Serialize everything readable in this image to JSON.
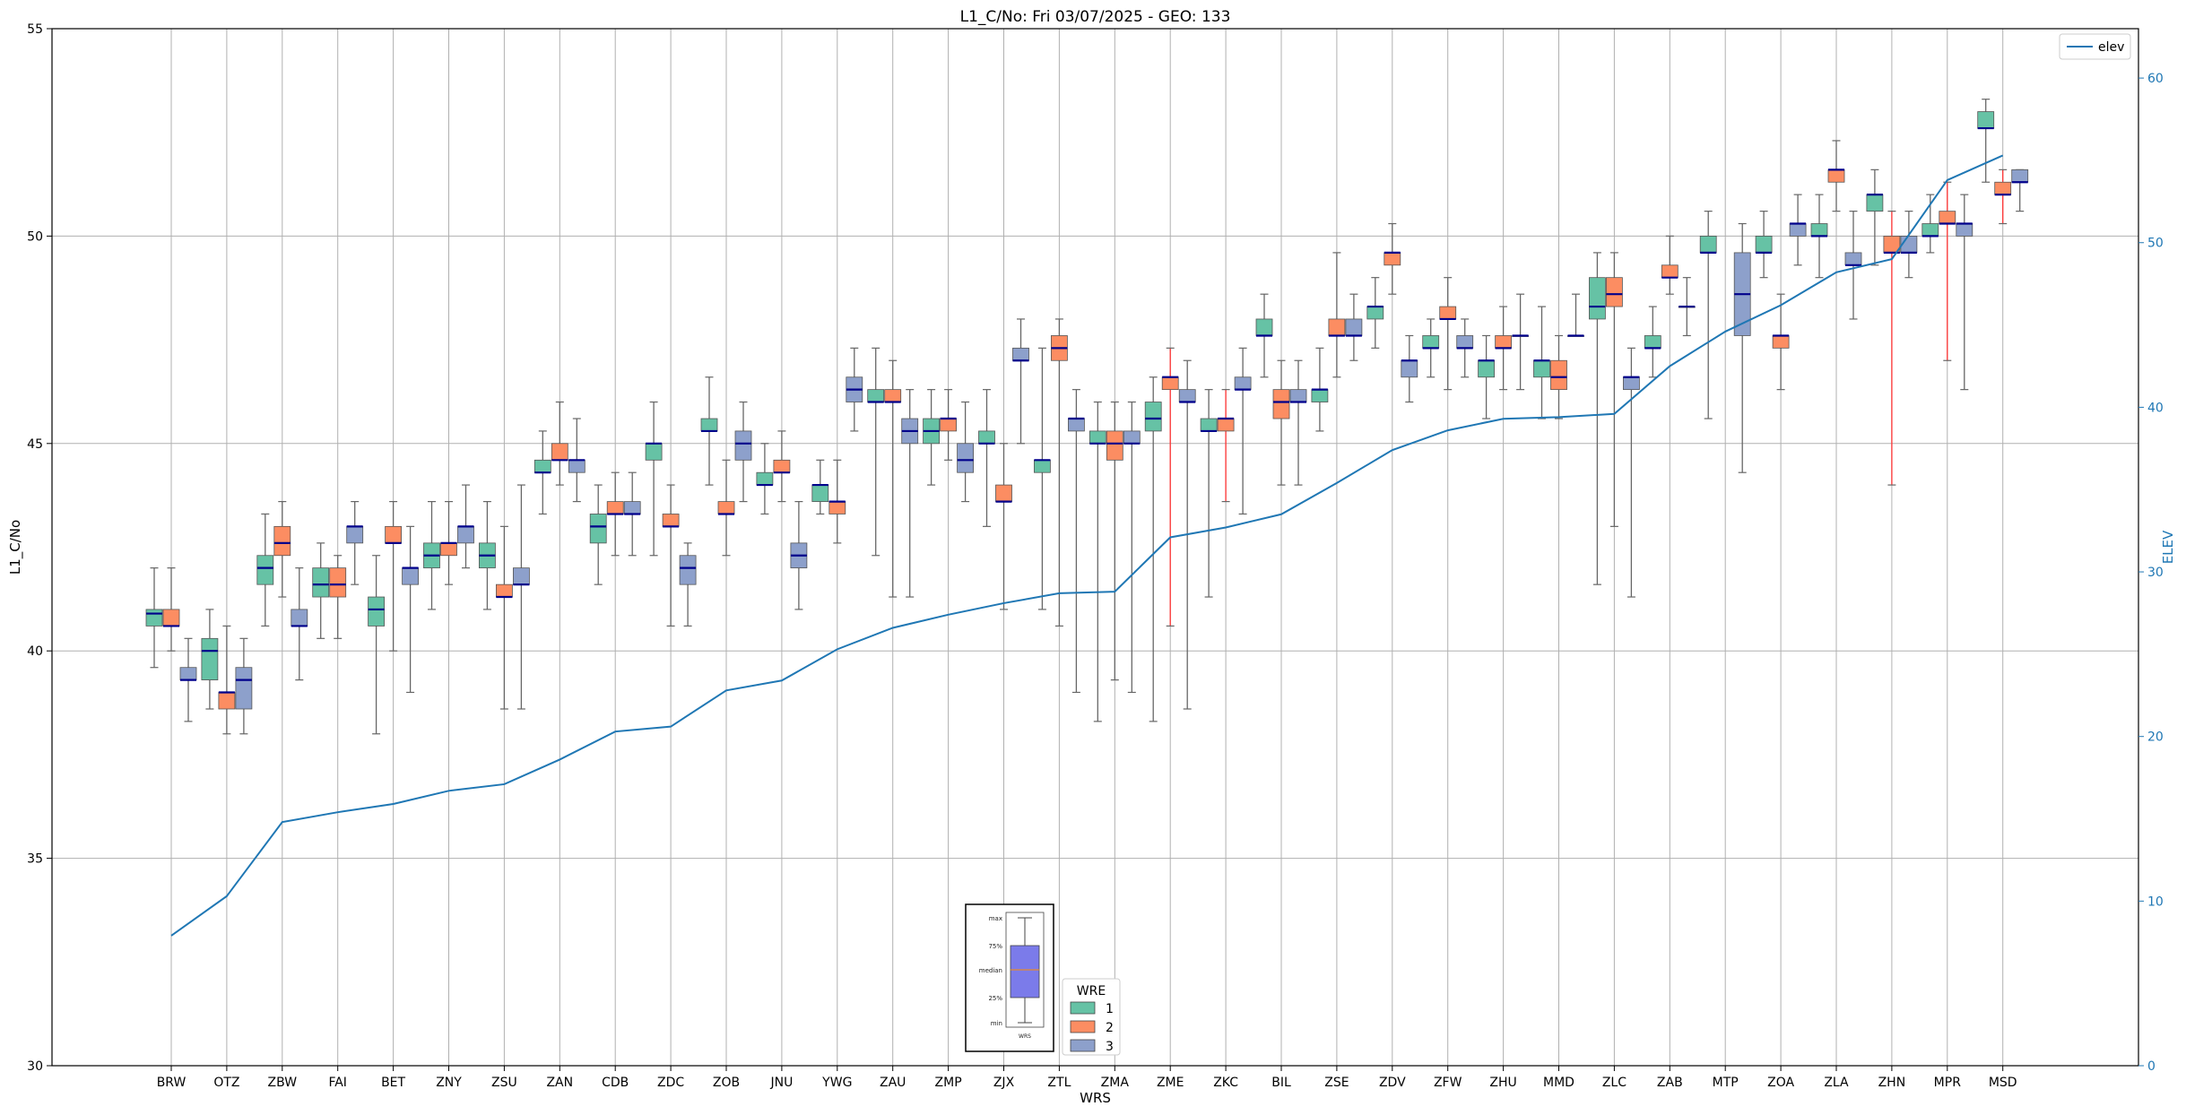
{
  "chart_data": {
    "type": "box",
    "title": "L1_C/No: Fri 03/07/2025 - GEO: 133",
    "xlabel": "WRS",
    "ylabel": "L1_C/No",
    "y2label": "ELEV",
    "ylim": [
      30,
      55
    ],
    "y2lim": [
      0,
      63
    ],
    "yticks": [
      30,
      35,
      40,
      45,
      50,
      55
    ],
    "y2ticks": [
      0,
      10,
      20,
      30,
      40,
      50,
      60
    ],
    "grid": true,
    "categories": [
      "BRW",
      "OTZ",
      "ZBW",
      "FAI",
      "BET",
      "ZNY",
      "ZSU",
      "ZAN",
      "CDB",
      "ZDC",
      "ZOB",
      "JNU",
      "YWG",
      "ZAU",
      "ZMP",
      "ZJX",
      "ZTL",
      "ZMA",
      "ZME",
      "ZKC",
      "BIL",
      "ZSE",
      "ZDV",
      "ZFW",
      "ZHU",
      "MMD",
      "ZLC",
      "ZAB",
      "MTP",
      "ZOA",
      "ZLA",
      "ZHN",
      "MPR",
      "MSD"
    ],
    "elev_legend": "elev",
    "elev": [
      7.9,
      10.3,
      14.8,
      15.4,
      15.9,
      16.7,
      17.1,
      18.6,
      20.3,
      20.6,
      22.8,
      23.4,
      25.3,
      26.6,
      27.4,
      28.1,
      28.7,
      28.8,
      32.1,
      32.7,
      33.5,
      35.4,
      37.4,
      38.6,
      39.3,
      39.4,
      39.6,
      42.5,
      44.6,
      46.2,
      48.2,
      49.0,
      53.8,
      55.3
    ],
    "wre_legend_title": "WRE",
    "box_colors": {
      "1": "#66c2a5",
      "2": "#fc8d62",
      "3": "#8da0cb"
    },
    "median_color": "#00008b",
    "whisker_color": "#666666",
    "highlight_whisker_color": "#ff3333",
    "series": [
      {
        "name": "1",
        "boxes": [
          {
            "cat": "BRW",
            "min": 39.6,
            "q1": 40.6,
            "med": 40.9,
            "q3": 41.0,
            "max": 42.0
          },
          {
            "cat": "OTZ",
            "min": 38.6,
            "q1": 39.3,
            "med": 40.0,
            "q3": 40.3,
            "max": 41.0
          },
          {
            "cat": "ZBW",
            "min": 40.6,
            "q1": 41.6,
            "med": 42.0,
            "q3": 42.3,
            "max": 43.3
          },
          {
            "cat": "FAI",
            "min": 40.3,
            "q1": 41.3,
            "med": 41.6,
            "q3": 42.0,
            "max": 42.6
          },
          {
            "cat": "BET",
            "min": 38.0,
            "q1": 40.6,
            "med": 41.0,
            "q3": 41.3,
            "max": 42.3
          },
          {
            "cat": "ZNY",
            "min": 41.0,
            "q1": 42.0,
            "med": 42.3,
            "q3": 42.6,
            "max": 43.6
          },
          {
            "cat": "ZSU",
            "min": 41.0,
            "q1": 42.0,
            "med": 42.3,
            "q3": 42.6,
            "max": 43.6
          },
          {
            "cat": "ZAN",
            "min": 43.3,
            "q1": 44.3,
            "med": 44.3,
            "q3": 44.6,
            "max": 45.3
          },
          {
            "cat": "CDB",
            "min": 41.6,
            "q1": 42.6,
            "med": 43.0,
            "q3": 43.3,
            "max": 44.0
          },
          {
            "cat": "ZDC",
            "min": 42.3,
            "q1": 44.6,
            "med": 45.0,
            "q3": 45.0,
            "max": 46.0
          },
          {
            "cat": "ZOB",
            "min": 44.0,
            "q1": 45.3,
            "med": 45.3,
            "q3": 45.6,
            "max": 46.6
          },
          {
            "cat": "JNU",
            "min": 43.3,
            "q1": 44.0,
            "med": 44.0,
            "q3": 44.3,
            "max": 45.0
          },
          {
            "cat": "YWG",
            "min": 43.3,
            "q1": 43.6,
            "med": 44.0,
            "q3": 44.0,
            "max": 44.6
          },
          {
            "cat": "ZAU",
            "min": 42.3,
            "q1": 46.0,
            "med": 46.0,
            "q3": 46.3,
            "max": 47.3
          },
          {
            "cat": "ZMP",
            "min": 44.0,
            "q1": 45.0,
            "med": 45.3,
            "q3": 45.6,
            "max": 46.3
          },
          {
            "cat": "ZJX",
            "min": 43.0,
            "q1": 45.0,
            "med": 45.0,
            "q3": 45.3,
            "max": 46.3
          },
          {
            "cat": "ZTL",
            "min": 41.0,
            "q1": 44.3,
            "med": 44.6,
            "q3": 44.6,
            "max": 47.3
          },
          {
            "cat": "ZMA",
            "min": 38.3,
            "q1": 45.0,
            "med": 45.0,
            "q3": 45.3,
            "max": 46.0
          },
          {
            "cat": "ZME",
            "min": 38.3,
            "q1": 45.3,
            "med": 45.6,
            "q3": 46.0,
            "max": 46.6
          },
          {
            "cat": "ZKC",
            "min": 41.3,
            "q1": 45.3,
            "med": 45.3,
            "q3": 45.6,
            "max": 46.3
          },
          {
            "cat": "BIL",
            "min": 46.6,
            "q1": 47.6,
            "med": 47.6,
            "q3": 48.0,
            "max": 48.6
          },
          {
            "cat": "ZSE",
            "min": 45.3,
            "q1": 46.0,
            "med": 46.3,
            "q3": 46.3,
            "max": 47.3
          },
          {
            "cat": "ZDV",
            "min": 47.3,
            "q1": 48.0,
            "med": 48.3,
            "q3": 48.3,
            "max": 49.0
          },
          {
            "cat": "ZFW",
            "min": 46.6,
            "q1": 47.3,
            "med": 47.3,
            "q3": 47.6,
            "max": 48.0
          },
          {
            "cat": "ZHU",
            "min": 45.6,
            "q1": 46.6,
            "med": 47.0,
            "q3": 47.0,
            "max": 47.6
          },
          {
            "cat": "MMD",
            "min": 45.6,
            "q1": 46.6,
            "med": 47.0,
            "q3": 47.0,
            "max": 48.3
          },
          {
            "cat": "ZLC",
            "min": 41.6,
            "q1": 48.0,
            "med": 48.3,
            "q3": 49.0,
            "max": 49.6
          },
          {
            "cat": "ZAB",
            "min": 46.6,
            "q1": 47.3,
            "med": 47.3,
            "q3": 47.6,
            "max": 48.3
          },
          {
            "cat": "MTP",
            "min": 45.6,
            "q1": 49.6,
            "med": 49.6,
            "q3": 50.0,
            "max": 50.6
          },
          {
            "cat": "ZOA",
            "min": 49.0,
            "q1": 49.6,
            "med": 49.6,
            "q3": 50.0,
            "max": 50.6
          },
          {
            "cat": "ZLA",
            "min": 49.0,
            "q1": 50.0,
            "med": 50.0,
            "q3": 50.3,
            "max": 51.0
          },
          {
            "cat": "ZHN",
            "min": 49.3,
            "q1": 50.6,
            "med": 51.0,
            "q3": 51.0,
            "max": 51.6
          },
          {
            "cat": "MPR",
            "min": 49.6,
            "q1": 50.0,
            "med": 50.0,
            "q3": 50.3,
            "max": 51.0
          },
          {
            "cat": "MSD",
            "min": 51.3,
            "q1": 52.6,
            "med": 52.6,
            "q3": 53.0,
            "max": 53.3
          }
        ]
      },
      {
        "name": "2",
        "boxes": [
          {
            "cat": "BRW",
            "min": 40.0,
            "q1": 40.6,
            "med": 40.6,
            "q3": 41.0,
            "max": 42.0
          },
          {
            "cat": "OTZ",
            "min": 38.0,
            "q1": 38.6,
            "med": 39.0,
            "q3": 39.0,
            "max": 40.6
          },
          {
            "cat": "ZBW",
            "min": 41.3,
            "q1": 42.3,
            "med": 42.6,
            "q3": 43.0,
            "max": 43.6
          },
          {
            "cat": "FAI",
            "min": 40.3,
            "q1": 41.3,
            "med": 41.6,
            "q3": 42.0,
            "max": 42.3
          },
          {
            "cat": "BET",
            "min": 40.0,
            "q1": 42.6,
            "med": 42.6,
            "q3": 43.0,
            "max": 43.6
          },
          {
            "cat": "ZNY",
            "min": 41.6,
            "q1": 42.3,
            "med": 42.6,
            "q3": 42.6,
            "max": 43.6
          },
          {
            "cat": "ZSU",
            "min": 38.6,
            "q1": 41.3,
            "med": 41.3,
            "q3": 41.6,
            "max": 43.0
          },
          {
            "cat": "ZAN",
            "min": 44.0,
            "q1": 44.6,
            "med": 44.6,
            "q3": 45.0,
            "max": 46.0
          },
          {
            "cat": "CDB",
            "min": 42.3,
            "q1": 43.3,
            "med": 43.3,
            "q3": 43.6,
            "max": 44.3
          },
          {
            "cat": "ZDC",
            "min": 40.6,
            "q1": 43.0,
            "med": 43.0,
            "q3": 43.3,
            "max": 44.0
          },
          {
            "cat": "ZOB",
            "min": 42.3,
            "q1": 43.3,
            "med": 43.3,
            "q3": 43.6,
            "max": 44.6
          },
          {
            "cat": "JNU",
            "min": 43.6,
            "q1": 44.3,
            "med": 44.3,
            "q3": 44.6,
            "max": 45.3
          },
          {
            "cat": "YWG",
            "min": 42.6,
            "q1": 43.3,
            "med": 43.6,
            "q3": 43.6,
            "max": 44.6
          },
          {
            "cat": "ZAU",
            "min": 41.3,
            "q1": 46.0,
            "med": 46.0,
            "q3": 46.3,
            "max": 47.0
          },
          {
            "cat": "ZMP",
            "min": 44.6,
            "q1": 45.3,
            "med": 45.6,
            "q3": 45.6,
            "max": 46.3
          },
          {
            "cat": "ZJX",
            "min": 41.0,
            "q1": 43.6,
            "med": 43.6,
            "q3": 44.0,
            "max": 45.0
          },
          {
            "cat": "ZTL",
            "min": 40.6,
            "q1": 47.0,
            "med": 47.3,
            "q3": 47.6,
            "max": 48.0
          },
          {
            "cat": "ZMA",
            "min": 39.3,
            "q1": 44.6,
            "med": 45.0,
            "q3": 45.3,
            "max": 46.0
          },
          {
            "cat": "ZME",
            "min": 40.6,
            "q1": 46.3,
            "med": 46.6,
            "q3": 46.6,
            "max": 47.3,
            "highlight": true
          },
          {
            "cat": "ZKC",
            "min": 43.6,
            "q1": 45.3,
            "med": 45.6,
            "q3": 45.6,
            "max": 46.3,
            "highlight": true
          },
          {
            "cat": "BIL",
            "min": 44.0,
            "q1": 45.6,
            "med": 46.0,
            "q3": 46.3,
            "max": 47.0
          },
          {
            "cat": "ZSE",
            "min": 46.6,
            "q1": 47.6,
            "med": 47.6,
            "q3": 48.0,
            "max": 49.6
          },
          {
            "cat": "ZDV",
            "min": 48.6,
            "q1": 49.3,
            "med": 49.6,
            "q3": 49.6,
            "max": 50.3
          },
          {
            "cat": "ZFW",
            "min": 46.3,
            "q1": 48.0,
            "med": 48.0,
            "q3": 48.3,
            "max": 49.0
          },
          {
            "cat": "ZHU",
            "min": 46.3,
            "q1": 47.3,
            "med": 47.3,
            "q3": 47.6,
            "max": 48.3
          },
          {
            "cat": "MMD",
            "min": 45.6,
            "q1": 46.3,
            "med": 46.6,
            "q3": 47.0,
            "max": 47.6
          },
          {
            "cat": "ZLC",
            "min": 43.0,
            "q1": 48.3,
            "med": 48.6,
            "q3": 49.0,
            "max": 49.6
          },
          {
            "cat": "ZAB",
            "min": 48.6,
            "q1": 49.0,
            "med": 49.0,
            "q3": 49.3,
            "max": 50.0
          },
          {
            "cat": "ZOA",
            "min": 46.3,
            "q1": 47.3,
            "med": 47.6,
            "q3": 47.6,
            "max": 48.6
          },
          {
            "cat": "ZLA",
            "min": 50.6,
            "q1": 51.3,
            "med": 51.6,
            "q3": 51.6,
            "max": 52.3
          },
          {
            "cat": "ZHN",
            "min": 44.0,
            "q1": 49.6,
            "med": 49.6,
            "q3": 50.0,
            "max": 50.6,
            "highlight": true
          },
          {
            "cat": "MPR",
            "min": 47.0,
            "q1": 50.3,
            "med": 50.3,
            "q3": 50.6,
            "max": 51.3,
            "highlight": true
          },
          {
            "cat": "MSD",
            "min": 50.3,
            "q1": 51.0,
            "med": 51.0,
            "q3": 51.3,
            "max": 51.6,
            "highlight": true
          }
        ]
      },
      {
        "name": "3",
        "boxes": [
          {
            "cat": "BRW",
            "min": 38.3,
            "q1": 39.3,
            "med": 39.3,
            "q3": 39.6,
            "max": 40.3
          },
          {
            "cat": "OTZ",
            "min": 38.0,
            "q1": 38.6,
            "med": 39.3,
            "q3": 39.6,
            "max": 40.3
          },
          {
            "cat": "ZBW",
            "min": 39.3,
            "q1": 40.6,
            "med": 40.6,
            "q3": 41.0,
            "max": 42.0
          },
          {
            "cat": "FAI",
            "min": 41.6,
            "q1": 42.6,
            "med": 43.0,
            "q3": 43.0,
            "max": 43.6
          },
          {
            "cat": "BET",
            "min": 39.0,
            "q1": 41.6,
            "med": 42.0,
            "q3": 42.0,
            "max": 43.0
          },
          {
            "cat": "ZNY",
            "min": 42.0,
            "q1": 42.6,
            "med": 43.0,
            "q3": 43.0,
            "max": 44.0
          },
          {
            "cat": "ZSU",
            "min": 38.6,
            "q1": 41.6,
            "med": 41.6,
            "q3": 42.0,
            "max": 44.0
          },
          {
            "cat": "ZAN",
            "min": 43.6,
            "q1": 44.3,
            "med": 44.6,
            "q3": 44.6,
            "max": 45.6
          },
          {
            "cat": "CDB",
            "min": 42.3,
            "q1": 43.3,
            "med": 43.3,
            "q3": 43.6,
            "max": 44.3
          },
          {
            "cat": "ZDC",
            "min": 40.6,
            "q1": 41.6,
            "med": 42.0,
            "q3": 42.3,
            "max": 42.6
          },
          {
            "cat": "ZOB",
            "min": 43.6,
            "q1": 44.6,
            "med": 45.0,
            "q3": 45.3,
            "max": 46.0
          },
          {
            "cat": "JNU",
            "min": 41.0,
            "q1": 42.0,
            "med": 42.3,
            "q3": 42.6,
            "max": 43.6
          },
          {
            "cat": "YWG",
            "min": 45.3,
            "q1": 46.0,
            "med": 46.3,
            "q3": 46.6,
            "max": 47.3
          },
          {
            "cat": "ZAU",
            "min": 41.3,
            "q1": 45.0,
            "med": 45.3,
            "q3": 45.6,
            "max": 46.3
          },
          {
            "cat": "ZMP",
            "min": 43.6,
            "q1": 44.3,
            "med": 44.6,
            "q3": 45.0,
            "max": 46.0
          },
          {
            "cat": "ZJX",
            "min": 45.0,
            "q1": 47.0,
            "med": 47.0,
            "q3": 47.3,
            "max": 48.0
          },
          {
            "cat": "ZTL",
            "min": 39.0,
            "q1": 45.3,
            "med": 45.6,
            "q3": 45.6,
            "max": 46.3
          },
          {
            "cat": "ZMA",
            "min": 39.0,
            "q1": 45.0,
            "med": 45.0,
            "q3": 45.3,
            "max": 46.0
          },
          {
            "cat": "ZME",
            "min": 38.6,
            "q1": 46.0,
            "med": 46.0,
            "q3": 46.3,
            "max": 47.0
          },
          {
            "cat": "ZKC",
            "min": 43.3,
            "q1": 46.3,
            "med": 46.3,
            "q3": 46.6,
            "max": 47.3
          },
          {
            "cat": "BIL",
            "min": 44.0,
            "q1": 46.0,
            "med": 46.0,
            "q3": 46.3,
            "max": 47.0
          },
          {
            "cat": "ZSE",
            "min": 47.0,
            "q1": 47.6,
            "med": 47.6,
            "q3": 48.0,
            "max": 48.6
          },
          {
            "cat": "ZDV",
            "min": 46.0,
            "q1": 46.6,
            "med": 47.0,
            "q3": 47.0,
            "max": 47.6
          },
          {
            "cat": "ZFW",
            "min": 46.6,
            "q1": 47.3,
            "med": 47.3,
            "q3": 47.6,
            "max": 48.0
          },
          {
            "cat": "ZHU",
            "min": 46.3,
            "q1": 47.6,
            "med": 47.6,
            "q3": 47.6,
            "max": 48.6
          },
          {
            "cat": "MMD",
            "min": 47.6,
            "q1": 47.6,
            "med": 47.6,
            "q3": 47.6,
            "max": 48.6
          },
          {
            "cat": "ZLC",
            "min": 41.3,
            "q1": 46.3,
            "med": 46.6,
            "q3": 46.6,
            "max": 47.3
          },
          {
            "cat": "ZAB",
            "min": 47.6,
            "q1": 48.3,
            "med": 48.3,
            "q3": 48.3,
            "max": 49.0
          },
          {
            "cat": "MTP",
            "min": 44.3,
            "q1": 47.6,
            "med": 48.6,
            "q3": 49.6,
            "max": 50.3
          },
          {
            "cat": "ZOA",
            "min": 49.3,
            "q1": 50.0,
            "med": 50.3,
            "q3": 50.3,
            "max": 51.0
          },
          {
            "cat": "ZLA",
            "min": 48.0,
            "q1": 49.3,
            "med": 49.3,
            "q3": 49.6,
            "max": 50.6
          },
          {
            "cat": "ZHN",
            "min": 49.0,
            "q1": 49.6,
            "med": 49.6,
            "q3": 50.0,
            "max": 50.6
          },
          {
            "cat": "MPR",
            "min": 46.3,
            "q1": 50.0,
            "med": 50.3,
            "q3": 50.3,
            "max": 51.0
          },
          {
            "cat": "MSD",
            "min": 50.6,
            "q1": 51.3,
            "med": 51.3,
            "q3": 51.6,
            "max": 51.6
          }
        ]
      }
    ],
    "inset_key": {
      "labels": [
        "max",
        "75%",
        "median",
        "25%",
        "min"
      ],
      "xlabel": "WRS",
      "fill": "#7b7bea"
    }
  }
}
